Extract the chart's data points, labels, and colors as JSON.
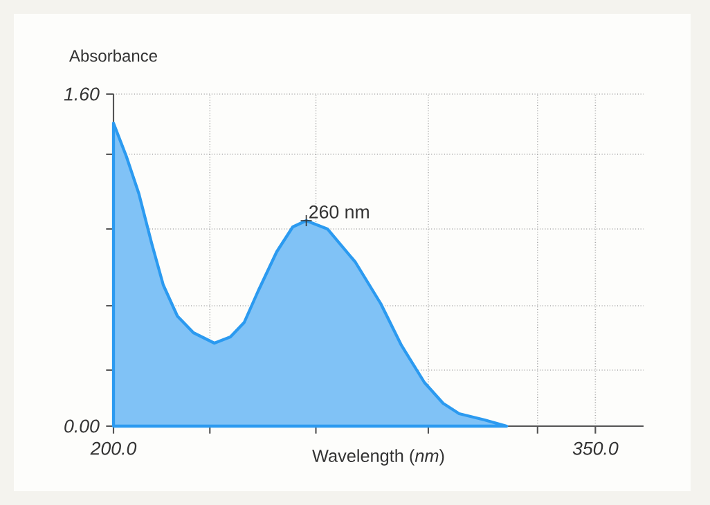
{
  "chart_data": {
    "type": "area",
    "ylabel": "Absorbance",
    "xlabel": "Wavelength (*nm*)",
    "x": [
      200,
      204,
      207.9,
      211.9,
      215.5,
      219.9,
      224.9,
      231.4,
      236.4,
      240.7,
      245,
      250.8,
      255.8,
      260,
      266.6,
      275.3,
      283.2,
      289.6,
      296.8,
      302.6,
      307.6,
      315.5,
      322.4
    ],
    "values": [
      1.46,
      1.3,
      1.12,
      0.88,
      0.68,
      0.53,
      0.45,
      0.4,
      0.43,
      0.5,
      0.65,
      0.84,
      0.96,
      0.99,
      0.95,
      0.79,
      0.59,
      0.39,
      0.21,
      0.11,
      0.06,
      0.03,
      0
    ],
    "color": "#2b9af0",
    "xlim": [
      200,
      365
    ],
    "ylim": [
      0,
      1.6
    ],
    "xticks": [
      {
        "value": 200,
        "label": "200.0"
      },
      {
        "value": 230,
        "label": null
      },
      {
        "value": 263,
        "label": null
      },
      {
        "value": 298,
        "label": null
      },
      {
        "value": 332,
        "label": null
      },
      {
        "value": 350,
        "label": "350.0"
      }
    ],
    "yticks": [
      {
        "value": 0,
        "label": "0.00"
      },
      {
        "value": 0.27,
        "label": null
      },
      {
        "value": 0.58,
        "label": null
      },
      {
        "value": 0.95,
        "label": null
      },
      {
        "value": 1.31,
        "label": null
      },
      {
        "value": 1.6,
        "label": "1.60"
      }
    ],
    "grid": true,
    "annotations": [
      {
        "text": "260 nm",
        "x": 260,
        "y": 0.99
      }
    ]
  }
}
